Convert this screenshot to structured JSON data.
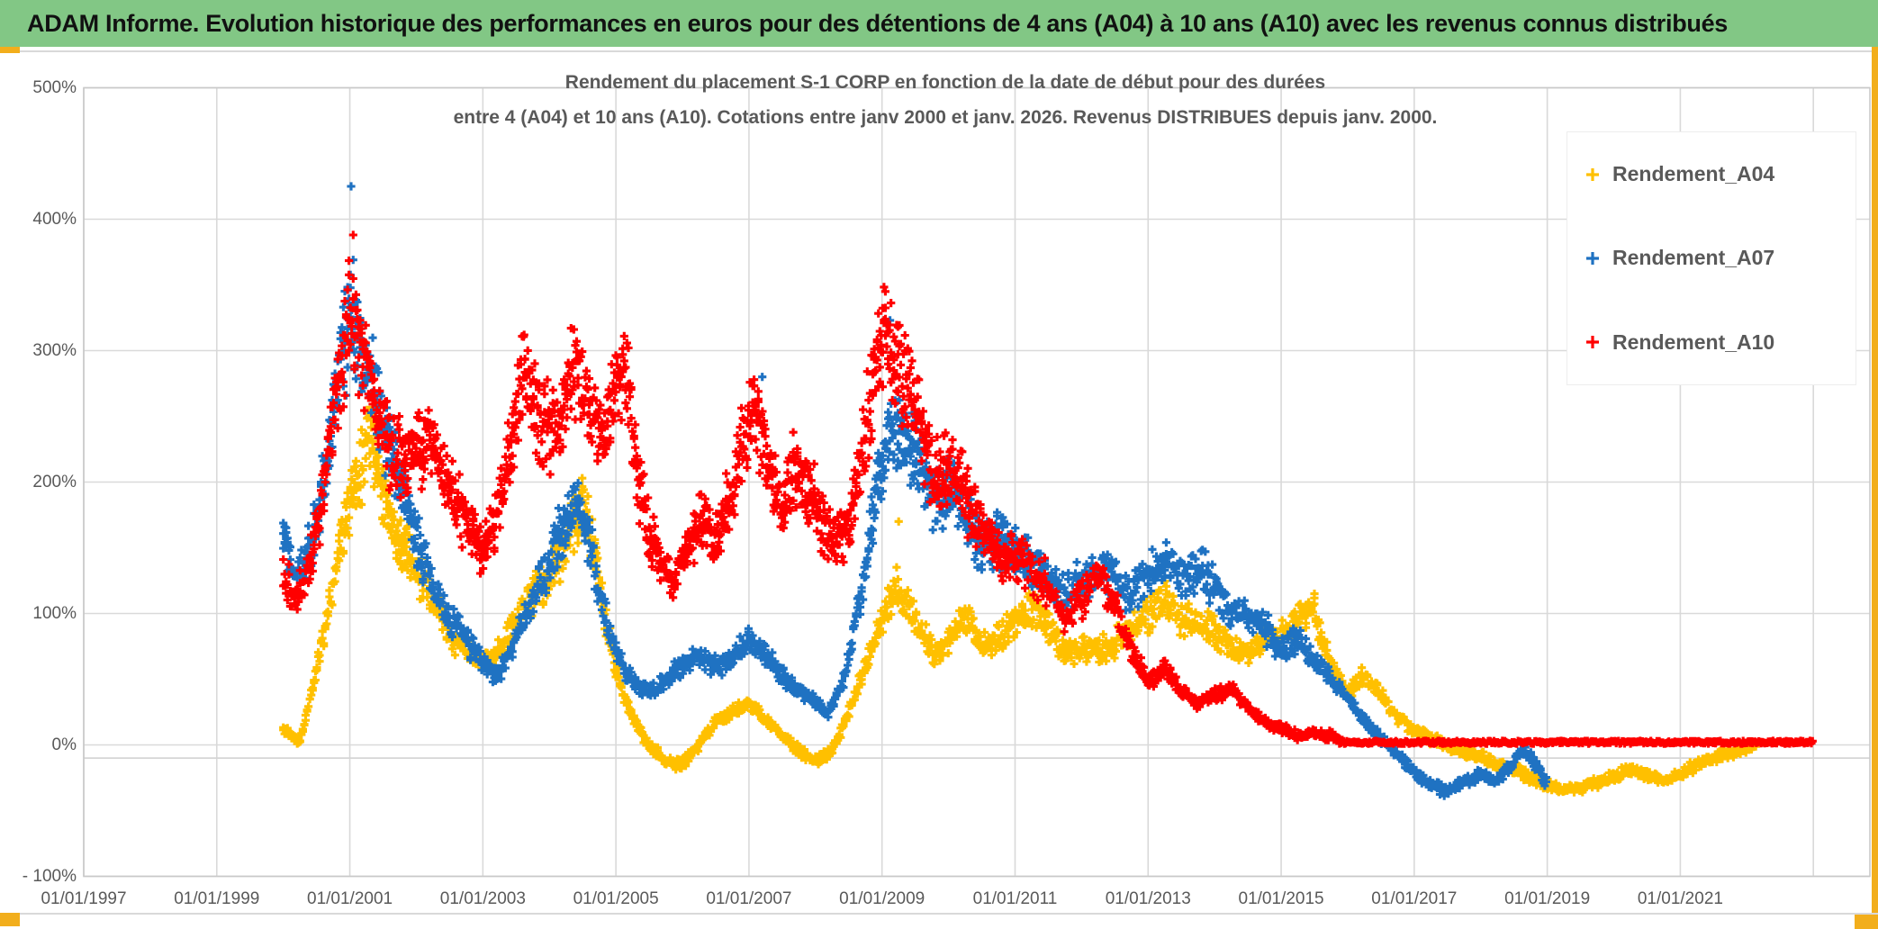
{
  "header": {
    "title": "ADAM Informe. Evolution historique des performances en euros pour des détentions de 4 ans (A04) à 10 ans (A10) avec les revenus connus distribués"
  },
  "chart_data": {
    "type": "scatter",
    "title_line1": "Rendement du placement S-1 CORP en fonction de la date de début pour des durées",
    "title_line2": "entre 4 (A04) et 10 ans (A10). Cotations entre janv 2000 et janv. 2026. Revenus DISTRIBUES depuis janv. 2000.",
    "marker": "plus",
    "grid": true,
    "legend_position": "right-top",
    "axes": {
      "x_min": 1997,
      "x_max": 2023.85,
      "y_min": -100,
      "y_max": 500,
      "grid_color": "#d9d9d9",
      "border_color": "#c9c9c9",
      "label_color": "#595959",
      "y_ticks": [
        {
          "v": 500,
          "label": "500%"
        },
        {
          "v": 400,
          "label": "400%"
        },
        {
          "v": 300,
          "label": "300%"
        },
        {
          "v": 200,
          "label": "200%"
        },
        {
          "v": 100,
          "label": "100%"
        },
        {
          "v": 0,
          "label": "0%"
        },
        {
          "v": -100,
          "label": "- 100%"
        }
      ],
      "x_ticks": [
        {
          "v": 1997,
          "label": "01/01/1997"
        },
        {
          "v": 1999,
          "label": "01/01/1999"
        },
        {
          "v": 2001,
          "label": "01/01/2001"
        },
        {
          "v": 2003,
          "label": "01/01/2003"
        },
        {
          "v": 2005,
          "label": "01/01/2005"
        },
        {
          "v": 2007,
          "label": "01/01/2007"
        },
        {
          "v": 2009,
          "label": "01/01/2009"
        },
        {
          "v": 2011,
          "label": "01/01/2011"
        },
        {
          "v": 2013,
          "label": "01/01/2013"
        },
        {
          "v": 2015,
          "label": "01/01/2015"
        },
        {
          "v": 2017,
          "label": "01/01/2017"
        },
        {
          "v": 2019,
          "label": "01/01/2019"
        },
        {
          "v": 2021,
          "label": "01/01/2021"
        }
      ],
      "x_grid_extra": [
        2023
      ]
    },
    "series": [
      {
        "name": "Rendement_A04",
        "color": "#FFC000",
        "seed": 11,
        "anchors": [
          [
            2000.0,
            12
          ],
          [
            2000.25,
            2
          ],
          [
            2000.5,
            55
          ],
          [
            2000.75,
            120
          ],
          [
            2001.0,
            185
          ],
          [
            2001.3,
            240
          ],
          [
            2001.5,
            195
          ],
          [
            2001.75,
            155
          ],
          [
            2002.0,
            135
          ],
          [
            2002.25,
            110
          ],
          [
            2002.5,
            85
          ],
          [
            2002.75,
            72
          ],
          [
            2003.0,
            62
          ],
          [
            2003.25,
            70
          ],
          [
            2003.5,
            95
          ],
          [
            2003.75,
            115
          ],
          [
            2004.0,
            130
          ],
          [
            2004.25,
            155
          ],
          [
            2004.5,
            185
          ],
          [
            2004.7,
            140
          ],
          [
            2004.9,
            80
          ],
          [
            2005.1,
            40
          ],
          [
            2005.3,
            15
          ],
          [
            2005.5,
            0
          ],
          [
            2005.75,
            -12
          ],
          [
            2006.0,
            -15
          ],
          [
            2006.25,
            0
          ],
          [
            2006.5,
            18
          ],
          [
            2006.75,
            25
          ],
          [
            2007.0,
            32
          ],
          [
            2007.25,
            20
          ],
          [
            2007.5,
            8
          ],
          [
            2007.75,
            -5
          ],
          [
            2008.0,
            -12
          ],
          [
            2008.25,
            -5
          ],
          [
            2008.5,
            25
          ],
          [
            2008.75,
            60
          ],
          [
            2009.0,
            95
          ],
          [
            2009.2,
            120
          ],
          [
            2009.4,
            105
          ],
          [
            2009.6,
            85
          ],
          [
            2009.8,
            70
          ],
          [
            2010.0,
            80
          ],
          [
            2010.25,
            95
          ],
          [
            2010.5,
            75
          ],
          [
            2010.75,
            80
          ],
          [
            2011.0,
            95
          ],
          [
            2011.25,
            105
          ],
          [
            2011.5,
            90
          ],
          [
            2011.75,
            70
          ],
          [
            2012.0,
            75
          ],
          [
            2012.25,
            72
          ],
          [
            2012.5,
            78
          ],
          [
            2012.75,
            90
          ],
          [
            2013.0,
            100
          ],
          [
            2013.25,
            112
          ],
          [
            2013.5,
            98
          ],
          [
            2013.75,
            92
          ],
          [
            2014.0,
            85
          ],
          [
            2014.25,
            75
          ],
          [
            2014.5,
            70
          ],
          [
            2014.75,
            78
          ],
          [
            2015.0,
            85
          ],
          [
            2015.25,
            95
          ],
          [
            2015.5,
            100
          ],
          [
            2015.75,
            60
          ],
          [
            2016.0,
            38
          ],
          [
            2016.25,
            55
          ],
          [
            2016.5,
            38
          ],
          [
            2016.75,
            20
          ],
          [
            2017.0,
            10
          ],
          [
            2017.25,
            5
          ],
          [
            2017.5,
            0
          ],
          [
            2017.75,
            -5
          ],
          [
            2018.0,
            -8
          ],
          [
            2018.25,
            -15
          ],
          [
            2018.5,
            -18
          ],
          [
            2018.75,
            -25
          ],
          [
            2019.0,
            -30
          ],
          [
            2019.25,
            -35
          ],
          [
            2019.5,
            -32
          ],
          [
            2019.75,
            -28
          ],
          [
            2020.0,
            -25
          ],
          [
            2020.25,
            -18
          ],
          [
            2020.5,
            -24
          ],
          [
            2020.75,
            -27
          ],
          [
            2021.0,
            -22
          ],
          [
            2021.25,
            -15
          ],
          [
            2021.5,
            -10
          ],
          [
            2021.75,
            -6
          ],
          [
            2022.0,
            -2
          ],
          [
            2022.15,
            0
          ]
        ],
        "outliers": [
          [
            2009.25,
            170
          ],
          [
            2015.5,
            115
          ]
        ]
      },
      {
        "name": "Rendement_A07",
        "color": "#1F72C2",
        "seed": 22,
        "anchors": [
          [
            2000.0,
            155
          ],
          [
            2000.2,
            125
          ],
          [
            2000.4,
            150
          ],
          [
            2000.6,
            200
          ],
          [
            2000.8,
            265
          ],
          [
            2001.0,
            330
          ],
          [
            2001.2,
            305
          ],
          [
            2001.4,
            260
          ],
          [
            2001.6,
            225
          ],
          [
            2001.8,
            195
          ],
          [
            2002.0,
            160
          ],
          [
            2002.25,
            120
          ],
          [
            2002.5,
            95
          ],
          [
            2002.75,
            80
          ],
          [
            2003.0,
            62
          ],
          [
            2003.2,
            52
          ],
          [
            2003.4,
            70
          ],
          [
            2003.6,
            95
          ],
          [
            2003.8,
            115
          ],
          [
            2004.0,
            140
          ],
          [
            2004.25,
            170
          ],
          [
            2004.45,
            185
          ],
          [
            2004.65,
            140
          ],
          [
            2004.85,
            95
          ],
          [
            2005.05,
            65
          ],
          [
            2005.25,
            48
          ],
          [
            2005.5,
            40
          ],
          [
            2005.75,
            50
          ],
          [
            2006.0,
            60
          ],
          [
            2006.25,
            68
          ],
          [
            2006.5,
            60
          ],
          [
            2006.75,
            65
          ],
          [
            2007.0,
            80
          ],
          [
            2007.25,
            70
          ],
          [
            2007.5,
            52
          ],
          [
            2007.75,
            42
          ],
          [
            2008.0,
            32
          ],
          [
            2008.2,
            24
          ],
          [
            2008.4,
            45
          ],
          [
            2008.6,
            90
          ],
          [
            2008.8,
            150
          ],
          [
            2009.0,
            215
          ],
          [
            2009.2,
            245
          ],
          [
            2009.4,
            225
          ],
          [
            2009.6,
            205
          ],
          [
            2009.8,
            185
          ],
          [
            2010.0,
            195
          ],
          [
            2010.25,
            175
          ],
          [
            2010.5,
            150
          ],
          [
            2010.75,
            155
          ],
          [
            2011.0,
            150
          ],
          [
            2011.25,
            140
          ],
          [
            2011.5,
            125
          ],
          [
            2011.75,
            112
          ],
          [
            2012.0,
            125
          ],
          [
            2012.25,
            135
          ],
          [
            2012.5,
            125
          ],
          [
            2012.75,
            118
          ],
          [
            2013.0,
            128
          ],
          [
            2013.25,
            140
          ],
          [
            2013.5,
            125
          ],
          [
            2013.75,
            135
          ],
          [
            2014.0,
            120
          ],
          [
            2014.25,
            105
          ],
          [
            2014.5,
            95
          ],
          [
            2014.75,
            90
          ],
          [
            2015.0,
            72
          ],
          [
            2015.25,
            80
          ],
          [
            2015.5,
            65
          ],
          [
            2015.75,
            50
          ],
          [
            2016.0,
            35
          ],
          [
            2016.25,
            18
          ],
          [
            2016.5,
            5
          ],
          [
            2016.75,
            -8
          ],
          [
            2017.0,
            -20
          ],
          [
            2017.25,
            -30
          ],
          [
            2017.5,
            -36
          ],
          [
            2017.75,
            -28
          ],
          [
            2018.0,
            -22
          ],
          [
            2018.25,
            -28
          ],
          [
            2018.5,
            -12
          ],
          [
            2018.65,
            -3
          ],
          [
            2018.8,
            -14
          ],
          [
            2019.0,
            -29
          ]
        ],
        "outliers": [
          [
            2001.02,
            425
          ],
          [
            2009.12,
            323
          ],
          [
            2007.2,
            280
          ]
        ]
      },
      {
        "name": "Rendement_A10",
        "color": "#FF0000",
        "seed": 33,
        "anchors": [
          [
            2000.0,
            128
          ],
          [
            2000.2,
            108
          ],
          [
            2000.4,
            140
          ],
          [
            2000.6,
            195
          ],
          [
            2000.8,
            270
          ],
          [
            2001.0,
            330
          ],
          [
            2001.2,
            300
          ],
          [
            2001.4,
            255
          ],
          [
            2001.6,
            225
          ],
          [
            2001.8,
            215
          ],
          [
            2002.0,
            225
          ],
          [
            2002.2,
            235
          ],
          [
            2002.4,
            210
          ],
          [
            2002.6,
            185
          ],
          [
            2002.8,
            165
          ],
          [
            2003.0,
            145
          ],
          [
            2003.2,
            175
          ],
          [
            2003.4,
            220
          ],
          [
            2003.6,
            285
          ],
          [
            2003.8,
            250
          ],
          [
            2004.0,
            240
          ],
          [
            2004.2,
            255
          ],
          [
            2004.4,
            290
          ],
          [
            2004.6,
            255
          ],
          [
            2004.8,
            230
          ],
          [
            2005.0,
            270
          ],
          [
            2005.15,
            285
          ],
          [
            2005.3,
            215
          ],
          [
            2005.5,
            160
          ],
          [
            2005.7,
            135
          ],
          [
            2005.9,
            125
          ],
          [
            2006.1,
            150
          ],
          [
            2006.3,
            175
          ],
          [
            2006.5,
            160
          ],
          [
            2006.7,
            185
          ],
          [
            2006.9,
            225
          ],
          [
            2007.1,
            255
          ],
          [
            2007.3,
            205
          ],
          [
            2007.5,
            180
          ],
          [
            2007.7,
            215
          ],
          [
            2007.9,
            195
          ],
          [
            2008.1,
            170
          ],
          [
            2008.3,
            152
          ],
          [
            2008.5,
            170
          ],
          [
            2008.7,
            225
          ],
          [
            2008.9,
            290
          ],
          [
            2009.05,
            325
          ],
          [
            2009.2,
            295
          ],
          [
            2009.4,
            270
          ],
          [
            2009.6,
            235
          ],
          [
            2009.8,
            205
          ],
          [
            2010.0,
            215
          ],
          [
            2010.25,
            190
          ],
          [
            2010.5,
            165
          ],
          [
            2010.75,
            140
          ],
          [
            2011.0,
            145
          ],
          [
            2011.25,
            132
          ],
          [
            2011.5,
            120
          ],
          [
            2011.75,
            95
          ],
          [
            2012.0,
            112
          ],
          [
            2012.25,
            128
          ],
          [
            2012.5,
            105
          ],
          [
            2012.75,
            72
          ],
          [
            2013.0,
            48
          ],
          [
            2013.25,
            58
          ],
          [
            2013.5,
            42
          ],
          [
            2013.75,
            32
          ],
          [
            2014.0,
            38
          ],
          [
            2014.25,
            42
          ],
          [
            2014.5,
            28
          ],
          [
            2014.75,
            18
          ],
          [
            2015.0,
            12
          ],
          [
            2015.25,
            6
          ],
          [
            2015.5,
            10
          ],
          [
            2015.75,
            6
          ],
          [
            2015.95,
            2
          ]
        ],
        "outliers": [
          [
            2001.05,
            388
          ],
          [
            2003.62,
            312
          ],
          [
            2009.05,
            345
          ]
        ]
      }
    ],
    "red_flat_segment": {
      "from": 2015.95,
      "to": 2023.0,
      "value": 2,
      "color": "#FF0000"
    },
    "extra_baseline": {
      "value": -10,
      "color": "#d6d6d6"
    }
  }
}
